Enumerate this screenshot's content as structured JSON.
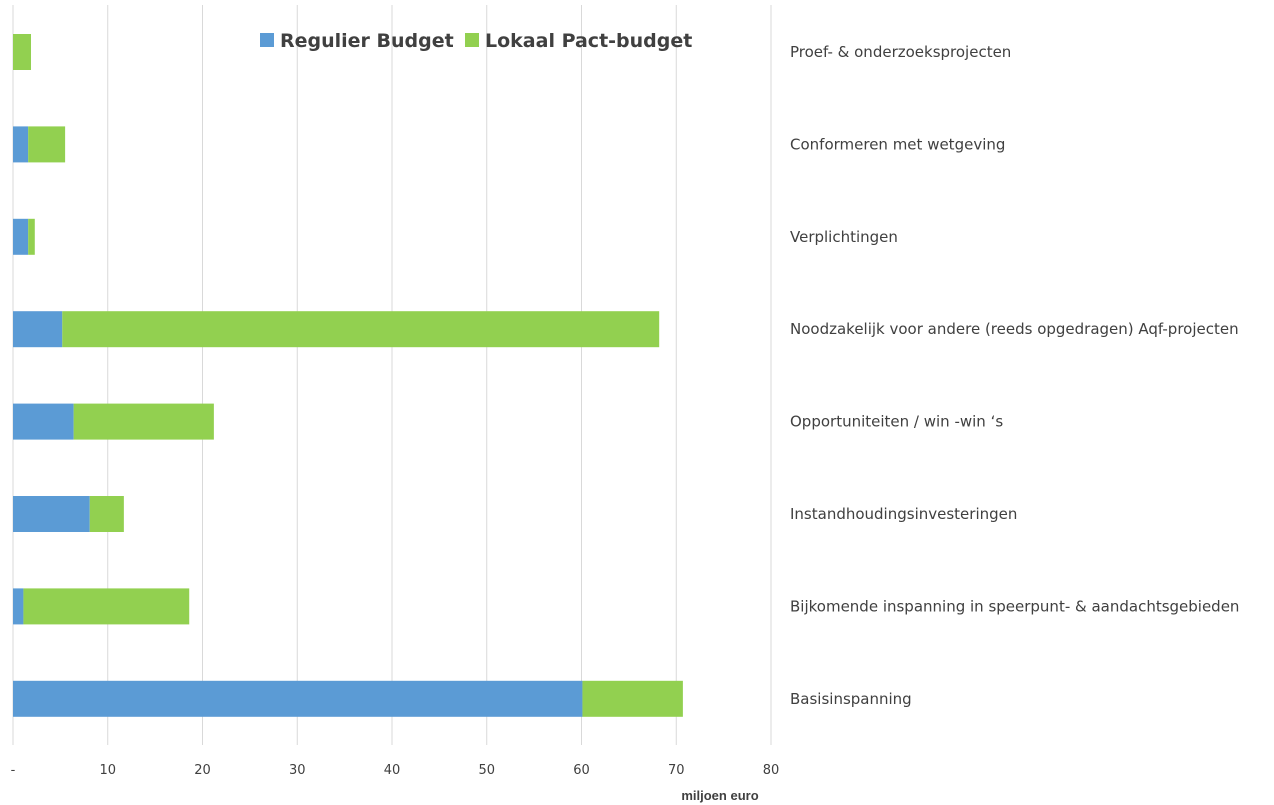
{
  "chart_data": {
    "type": "bar",
    "orientation": "horizontal",
    "stacked": true,
    "categories": [
      "Proef- & onderzoeksprojecten",
      "Conformeren met wetgeving",
      "Verplichtingen",
      "Noodzakelijk voor andere (reeds opgedragen) Aqf-projecten",
      "Opportuniteiten  /  win -win ‘s",
      "Instandhoudingsinvesteringen",
      "Bijkomende inspanning in speerpunt- & aandachtsgebieden",
      "Basisinspanning"
    ],
    "series": [
      {
        "name": "Regulier Budget",
        "color": "#5B9BD5",
        "values": [
          0,
          1.6,
          1.6,
          5.2,
          6.4,
          8.1,
          1.1,
          60.1
        ]
      },
      {
        "name": "Lokaal Pact-budget",
        "color": "#92D050",
        "values": [
          1.9,
          3.9,
          0.7,
          63.0,
          14.8,
          3.6,
          17.5,
          10.6
        ]
      }
    ],
    "xlabel": "miljoen euro",
    "xlim": [
      0,
      80
    ],
    "xticks": [
      0,
      10,
      20,
      30,
      40,
      50,
      60,
      70,
      80
    ],
    "xtick_labels": [
      "-",
      "10",
      "20",
      "30",
      "40",
      "50",
      "60",
      "70",
      "80"
    ],
    "grid": "vertical",
    "legend_position": "top-center",
    "category_labels_position": "right"
  }
}
